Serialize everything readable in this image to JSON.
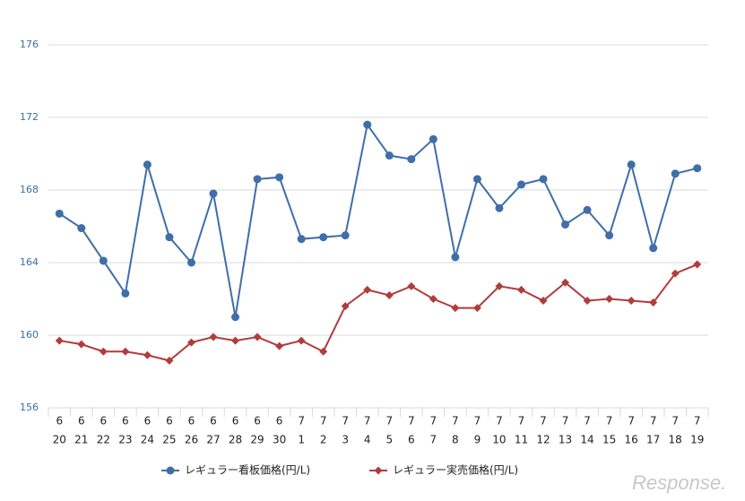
{
  "chart_data": {
    "type": "line",
    "categories": [
      [
        "6",
        "20"
      ],
      [
        "6",
        "21"
      ],
      [
        "6",
        "22"
      ],
      [
        "6",
        "23"
      ],
      [
        "6",
        "24"
      ],
      [
        "6",
        "25"
      ],
      [
        "6",
        "26"
      ],
      [
        "6",
        "27"
      ],
      [
        "6",
        "28"
      ],
      [
        "6",
        "29"
      ],
      [
        "6",
        "30"
      ],
      [
        "7",
        "1"
      ],
      [
        "7",
        "2"
      ],
      [
        "7",
        "3"
      ],
      [
        "7",
        "4"
      ],
      [
        "7",
        "5"
      ],
      [
        "7",
        "6"
      ],
      [
        "7",
        "7"
      ],
      [
        "7",
        "8"
      ],
      [
        "7",
        "9"
      ],
      [
        "7",
        "10"
      ],
      [
        "7",
        "11"
      ],
      [
        "7",
        "12"
      ],
      [
        "7",
        "13"
      ],
      [
        "7",
        "14"
      ],
      [
        "7",
        "15"
      ],
      [
        "7",
        "16"
      ],
      [
        "7",
        "17"
      ],
      [
        "7",
        "18"
      ],
      [
        "7",
        "19"
      ]
    ],
    "series": [
      {
        "name": "レギュラー看板価格(円/L)",
        "color": "#3f6ea8",
        "marker": "circle",
        "values": [
          166.7,
          165.9,
          164.1,
          162.3,
          169.4,
          165.4,
          164.0,
          167.8,
          161.0,
          168.6,
          168.7,
          165.3,
          165.4,
          165.5,
          171.6,
          169.9,
          169.7,
          170.8,
          164.3,
          168.6,
          167.0,
          168.3,
          168.6,
          166.1,
          166.9,
          165.5,
          169.4,
          164.8,
          168.9,
          169.2
        ]
      },
      {
        "name": "レギュラー実売価格(円/L)",
        "color": "#b13c3c",
        "marker": "diamond",
        "values": [
          159.7,
          159.5,
          159.1,
          159.1,
          158.9,
          158.6,
          159.6,
          159.9,
          159.7,
          159.9,
          159.4,
          159.7,
          159.1,
          161.6,
          162.5,
          162.2,
          162.7,
          162.0,
          161.5,
          161.5,
          162.7,
          162.5,
          161.9,
          162.9,
          161.9,
          162.0,
          161.9,
          161.8,
          163.4,
          163.9
        ]
      }
    ],
    "ylim": [
      156,
      176
    ],
    "yticks": [
      156,
      160,
      164,
      168,
      172,
      176
    ],
    "grid": true,
    "legend": "bottom",
    "watermark": "Response."
  }
}
